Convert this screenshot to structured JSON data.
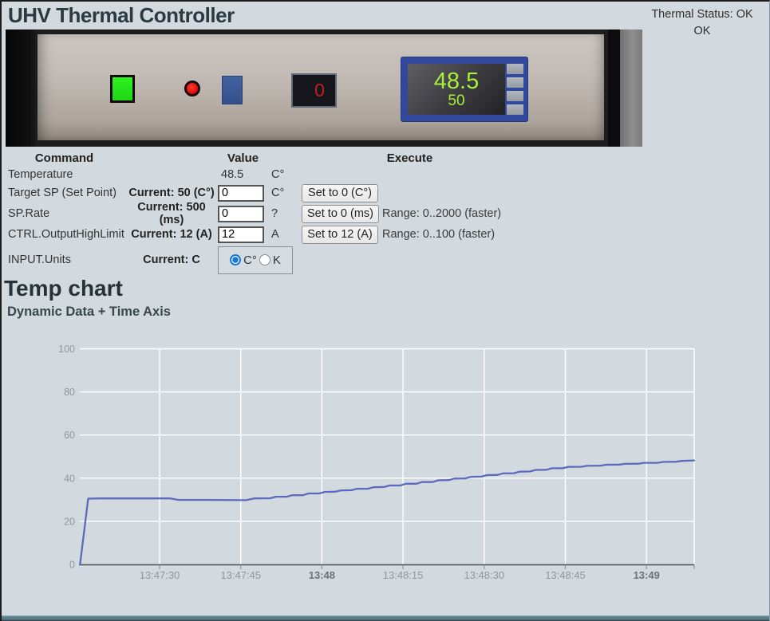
{
  "header": {
    "title": "UHV Thermal Controller",
    "thermal_status_label": "Thermal Status: OK",
    "thermal_status_value": "OK"
  },
  "device_panel": {
    "seven_seg_value": "0",
    "lcd_primary": "48.5",
    "lcd_secondary": "50",
    "colors": {
      "green_button": "#23e71b",
      "red_led": "#e11210",
      "blue_button": "#3d5c9e",
      "lcd_frame": "#30499c",
      "lcd_text": "#a7ef38",
      "seg_text": "#c42020"
    }
  },
  "table": {
    "headers": {
      "command": "Command",
      "value": "Value",
      "execute": "Execute"
    },
    "rows": [
      {
        "command": "Temperature",
        "current": "",
        "value": "48.5",
        "unit": "C°"
      },
      {
        "command": "Target SP (Set Point)",
        "current": "Current: 50 (C°)",
        "input": "0",
        "unit": "C°",
        "button": "Set to 0 (C°)",
        "range": ""
      },
      {
        "command": "SP.Rate",
        "current": "Current: 500 (ms)",
        "input": "0",
        "unit": "?",
        "button": "Set to 0 (ms)",
        "range": "Range: 0..2000 (faster)"
      },
      {
        "command": "CTRL.OutputHighLimit",
        "current": "Current: 12 (A)",
        "input": "12",
        "unit": "A",
        "button": "Set to 12 (A)",
        "range": "Range: 0..100 (faster)"
      },
      {
        "command": "INPUT.Units",
        "current": "Current: C",
        "radio_options": [
          {
            "label": "C°",
            "selected": true
          },
          {
            "label": "K",
            "selected": false
          }
        ]
      }
    ]
  },
  "chart_section": {
    "title": "Temp chart",
    "subtitle": "Dynamic Data + Time Axis"
  },
  "chart_data": {
    "type": "line",
    "title": "Temp chart",
    "subtitle": "Dynamic Data + Time Axis",
    "xlabel": "",
    "ylabel": "",
    "ylim": [
      0,
      100
    ],
    "yticks": [
      0,
      20,
      40,
      60,
      80,
      100
    ],
    "x_range": [
      "13:47:15",
      "13:49:10"
    ],
    "grid": true,
    "legend": false,
    "line_color": "#5b6abd",
    "xticks": [
      {
        "t": 15,
        "label": "13:47:30",
        "bold": false
      },
      {
        "t": 30,
        "label": "13:47:45",
        "bold": false
      },
      {
        "t": 45,
        "label": "13:48",
        "bold": true
      },
      {
        "t": 60,
        "label": "13:48:15",
        "bold": false
      },
      {
        "t": 75,
        "label": "13:48:30",
        "bold": false
      },
      {
        "t": 90,
        "label": "13:48:45",
        "bold": false
      },
      {
        "t": 105,
        "label": "13:49",
        "bold": true
      }
    ],
    "series": [
      {
        "name": "Temperature",
        "color": "#5b6abd",
        "points": [
          [
            0.3,
            0
          ],
          [
            1.8,
            30.5
          ],
          [
            4,
            30.6
          ],
          [
            17,
            30.6
          ],
          [
            18.5,
            29.9
          ],
          [
            24,
            29.9
          ],
          [
            31,
            29.8
          ],
          [
            32.5,
            30.6
          ],
          [
            35.5,
            30.7
          ],
          [
            36.5,
            31.4
          ],
          [
            38.5,
            31.4
          ],
          [
            39.5,
            32.1
          ],
          [
            41.5,
            32.1
          ],
          [
            42.5,
            32.9
          ],
          [
            44.5,
            32.9
          ],
          [
            45.5,
            33.6
          ],
          [
            47.5,
            33.7
          ],
          [
            48.5,
            34.3
          ],
          [
            50.5,
            34.4
          ],
          [
            51.5,
            35.1
          ],
          [
            53.5,
            35.1
          ],
          [
            54.5,
            35.8
          ],
          [
            56.5,
            35.9
          ],
          [
            57.5,
            36.6
          ],
          [
            59.5,
            36.6
          ],
          [
            60.5,
            37.4
          ],
          [
            62.5,
            37.4
          ],
          [
            63.5,
            38.2
          ],
          [
            65.5,
            38.2
          ],
          [
            66.5,
            39.0
          ],
          [
            68.5,
            39.1
          ],
          [
            69.5,
            39.8
          ],
          [
            71.5,
            39.9
          ],
          [
            72.5,
            40.6
          ],
          [
            74.5,
            40.7
          ],
          [
            75.5,
            41.4
          ],
          [
            77.5,
            41.5
          ],
          [
            78.5,
            42.2
          ],
          [
            80.5,
            42.3
          ],
          [
            81.5,
            43.0
          ],
          [
            83.5,
            43.1
          ],
          [
            84.5,
            43.8
          ],
          [
            86.5,
            43.9
          ],
          [
            87.5,
            44.6
          ],
          [
            89.5,
            44.6
          ],
          [
            90.5,
            45.2
          ],
          [
            93,
            45.3
          ],
          [
            94,
            45.7
          ],
          [
            96.5,
            45.8
          ],
          [
            97.5,
            46.2
          ],
          [
            100,
            46.3
          ],
          [
            101,
            46.6
          ],
          [
            103.5,
            46.7
          ],
          [
            104.5,
            47.1
          ],
          [
            107,
            47.1
          ],
          [
            108,
            47.5
          ],
          [
            110.5,
            47.6
          ],
          [
            111.5,
            48.0
          ],
          [
            113.8,
            48.2
          ]
        ]
      }
    ]
  }
}
